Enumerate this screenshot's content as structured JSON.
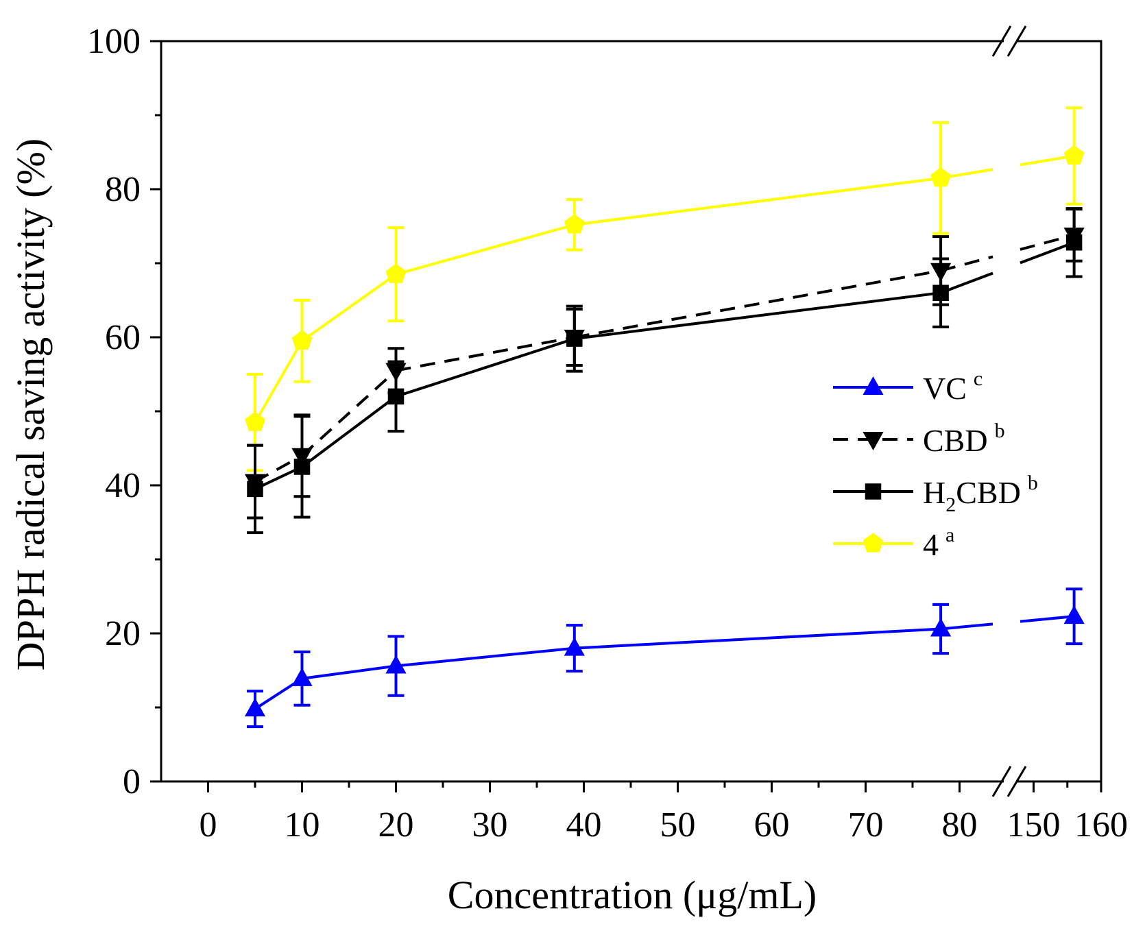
{
  "chart_data": {
    "type": "line",
    "xlabel": "Concentration (μg/mL)",
    "ylabel": "DPPH radical saving activity (%)",
    "ylim": [
      0,
      100
    ],
    "y_ticks": [
      0,
      20,
      40,
      60,
      80,
      100
    ],
    "x_segment1": {
      "range": [
        -5,
        85
      ],
      "ticks": [
        0,
        10,
        20,
        30,
        40,
        50,
        60,
        70,
        80
      ]
    },
    "x_segment2": {
      "range": [
        147,
        160
      ],
      "ticks": [
        150,
        160
      ]
    },
    "x_tick_labels": [
      "0",
      "10",
      "20",
      "30",
      "40",
      "50",
      "60",
      "70",
      "80",
      "150",
      "160"
    ],
    "axis_break": "between 80 and 150",
    "x": [
      5,
      10,
      20,
      39,
      78,
      156
    ],
    "series": [
      {
        "name": "VC",
        "superscript": "c",
        "color": "#0000ff",
        "marker": "triangle-up",
        "dash": "solid",
        "values": [
          9.8,
          13.9,
          15.6,
          18.0,
          20.6,
          22.3
        ],
        "errors": [
          2.4,
          3.6,
          4.0,
          3.1,
          3.3,
          3.7
        ]
      },
      {
        "name": "CBD",
        "superscript": "b",
        "color": "#000000",
        "marker": "triangle-down",
        "dash": "dashed",
        "values": [
          40.5,
          44.0,
          55.5,
          60.0,
          69.0,
          73.8
        ],
        "errors": [
          4.9,
          5.5,
          3.0,
          3.8,
          4.6,
          3.5
        ]
      },
      {
        "name": "H2CBD",
        "name_base": "H",
        "name_sub": "2",
        "name_rest": "CBD",
        "superscript": "b",
        "color": "#000000",
        "marker": "square",
        "dash": "solid",
        "values": [
          39.5,
          42.5,
          52.0,
          59.8,
          66.0,
          72.8
        ],
        "errors": [
          5.9,
          6.8,
          4.7,
          4.4,
          4.6,
          4.6
        ]
      },
      {
        "name": "4",
        "superscript": "a",
        "color": "#ffff00",
        "marker": "pentagon",
        "dash": "solid",
        "values": [
          48.5,
          59.5,
          68.5,
          75.2,
          81.5,
          84.5
        ],
        "errors": [
          6.5,
          5.5,
          6.3,
          3.4,
          7.5,
          6.5
        ]
      }
    ],
    "legend_position": "right-middle"
  }
}
